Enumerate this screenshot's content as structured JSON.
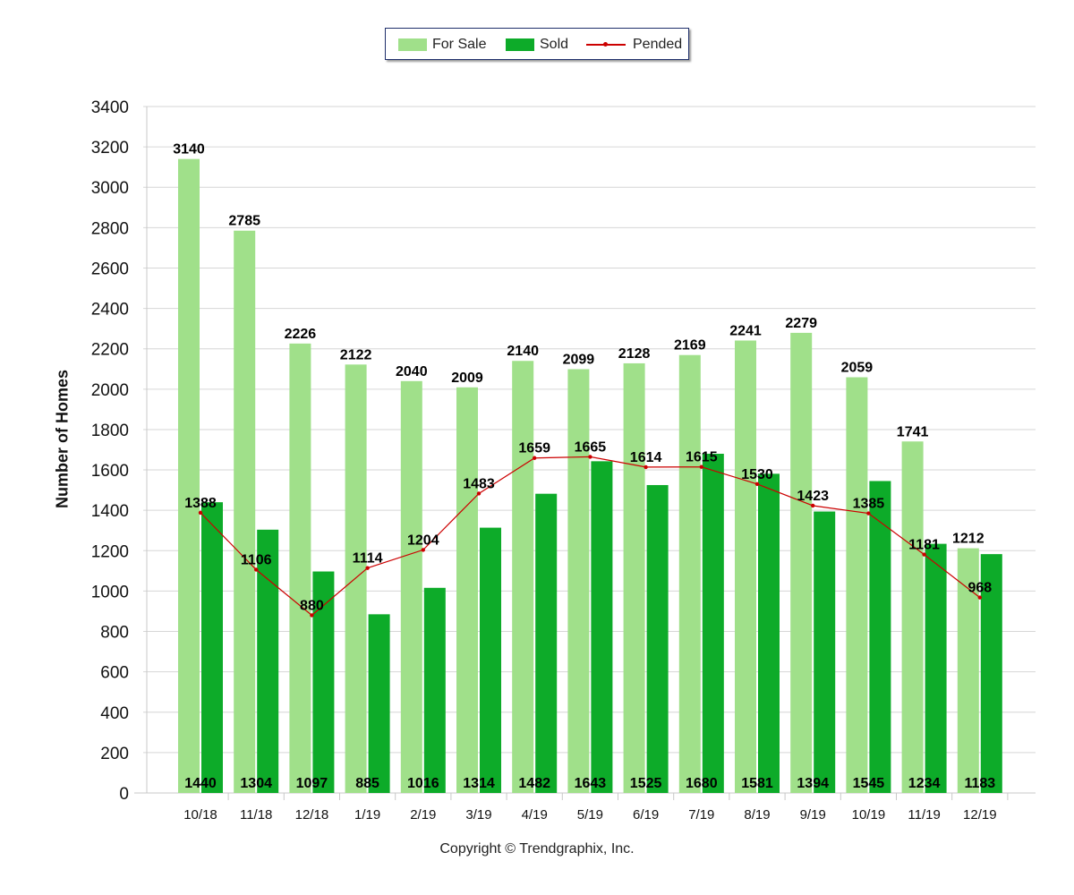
{
  "chart_data": {
    "type": "bar",
    "categories": [
      "10/18",
      "11/18",
      "12/18",
      "1/19",
      "2/19",
      "3/19",
      "4/19",
      "5/19",
      "6/19",
      "7/19",
      "8/19",
      "9/19",
      "10/19",
      "11/19",
      "12/19"
    ],
    "series": [
      {
        "name": "For Sale",
        "type": "bar",
        "color": "#a0e08a",
        "values": [
          3140,
          2785,
          2226,
          2122,
          2040,
          2009,
          2140,
          2099,
          2128,
          2169,
          2241,
          2279,
          2059,
          1741,
          1212
        ]
      },
      {
        "name": "Sold",
        "type": "bar",
        "color": "#0dab29",
        "values": [
          1440,
          1304,
          1097,
          885,
          1016,
          1314,
          1482,
          1643,
          1525,
          1680,
          1581,
          1394,
          1545,
          1234,
          1183
        ]
      },
      {
        "name": "Pended",
        "type": "line",
        "color": "#cc0000",
        "values": [
          1388,
          1106,
          880,
          1114,
          1204,
          1483,
          1659,
          1665,
          1614,
          1615,
          1530,
          1423,
          1385,
          1181,
          968
        ]
      }
    ],
    "ylabel": "Number of Homes",
    "ylim": [
      0,
      3400
    ],
    "yticks": [
      0,
      200,
      400,
      600,
      800,
      1000,
      1200,
      1400,
      1600,
      1800,
      2000,
      2200,
      2400,
      2600,
      2800,
      3000,
      3200,
      3400
    ],
    "grid": true,
    "legend_position": "top-center"
  },
  "legend": {
    "for_sale": "For Sale",
    "sold": "Sold",
    "pended": "Pended"
  },
  "footer": {
    "copyright": "Copyright © Trendgraphix, Inc."
  },
  "axis": {
    "ylabel": "Number of Homes"
  }
}
